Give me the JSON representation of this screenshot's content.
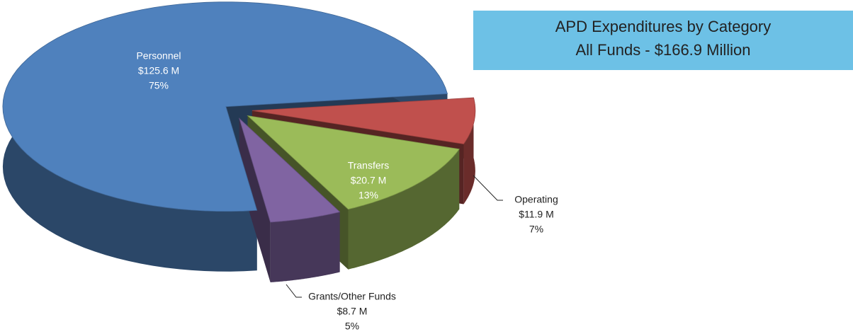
{
  "chart_data": {
    "type": "pie",
    "title": [
      "APD Expenditures by Category",
      "All Funds - $166.9 Million"
    ],
    "categories": [
      "Personnel",
      "Operating",
      "Transfers",
      "Grants/Other Funds"
    ],
    "values": [
      125.6,
      11.9,
      20.7,
      8.7
    ],
    "value_labels": [
      "$125.6 M",
      "$11.9 M",
      "$20.7 M",
      "$8.7 M"
    ],
    "percentages": [
      75,
      7,
      13,
      5
    ],
    "percentage_labels": [
      "75%",
      "7%",
      "13%",
      "5%"
    ],
    "colors": [
      "#4f81bd",
      "#c0504d",
      "#9bbb59",
      "#8064a2"
    ]
  }
}
